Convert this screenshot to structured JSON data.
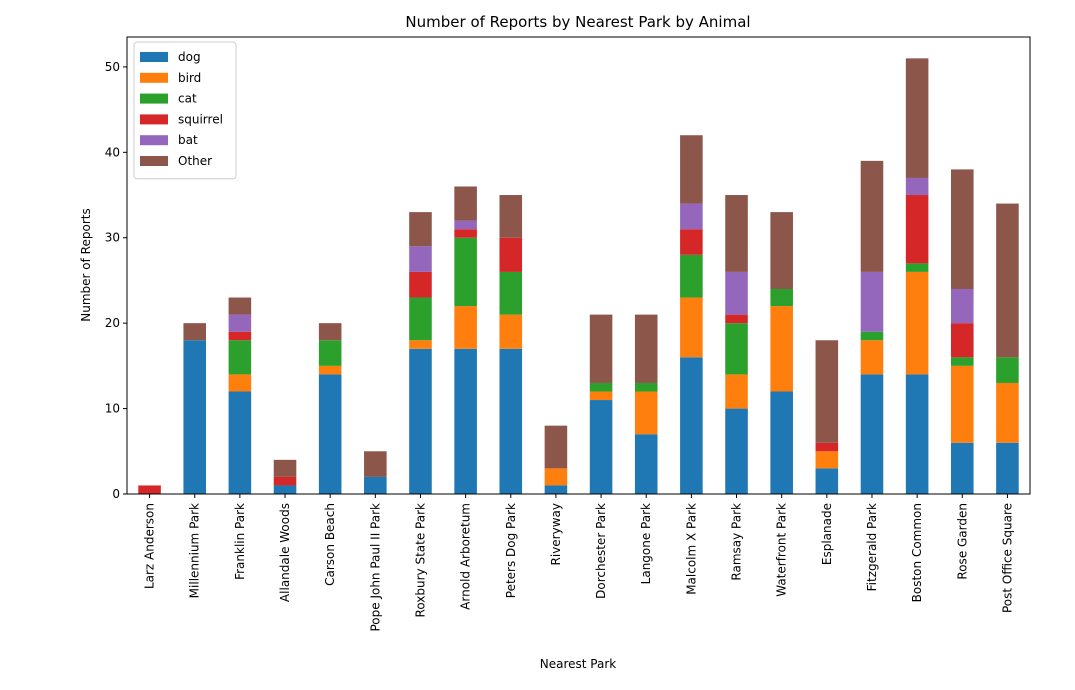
{
  "chart_data": {
    "type": "bar",
    "stacked": true,
    "title": "Number of Reports by Nearest Park by Animal",
    "xlabel": "Nearest Park",
    "ylabel": "Number of Reports",
    "ylim": [
      0,
      53.5
    ],
    "yticks": [
      0,
      10,
      20,
      30,
      40,
      50
    ],
    "grid": false,
    "legend_position": "top-left",
    "categories": [
      "Larz Anderson",
      "Millennium Park",
      "Franklin Park",
      "Allandale Woods",
      "Carson Beach",
      "Pope John Paul II Park",
      "Roxbury State Park",
      "Arnold Arboretum",
      "Peters Dog Park",
      "Riveryway",
      "Dorchester Park",
      "Langone Park",
      "Malcolm X Park",
      "Ramsay Park",
      "Waterfront Park",
      "Esplanade",
      "Fitzgerald Park",
      "Boston Common",
      "Rose Garden",
      "Post Office Square"
    ],
    "series": [
      {
        "name": "dog",
        "color": "#1f77b4",
        "values": [
          0,
          18,
          12,
          1,
          14,
          2,
          17,
          17,
          17,
          1,
          11,
          7,
          16,
          10,
          12,
          3,
          14,
          14,
          6,
          6
        ]
      },
      {
        "name": "bird",
        "color": "#ff7f0e",
        "values": [
          0,
          0,
          2,
          0,
          1,
          0,
          1,
          5,
          4,
          2,
          1,
          5,
          7,
          4,
          10,
          2,
          4,
          12,
          9,
          7
        ]
      },
      {
        "name": "cat",
        "color": "#2ca02c",
        "values": [
          0,
          0,
          4,
          0,
          3,
          0,
          5,
          8,
          5,
          0,
          1,
          1,
          5,
          6,
          2,
          0,
          1,
          1,
          1,
          3
        ]
      },
      {
        "name": "squirrel",
        "color": "#d62728",
        "values": [
          1,
          0,
          1,
          1,
          0,
          0,
          3,
          1,
          4,
          0,
          0,
          0,
          3,
          1,
          0,
          1,
          0,
          8,
          4,
          0
        ]
      },
      {
        "name": "bat",
        "color": "#9467bd",
        "values": [
          0,
          0,
          2,
          0,
          0,
          0,
          3,
          1,
          0,
          0,
          0,
          0,
          3,
          5,
          0,
          0,
          7,
          2,
          4,
          0
        ]
      },
      {
        "name": "Other",
        "color": "#8c564b",
        "values": [
          0,
          2,
          2,
          2,
          2,
          3,
          4,
          4,
          5,
          5,
          8,
          8,
          8,
          9,
          9,
          12,
          13,
          14,
          14,
          18
        ]
      }
    ]
  }
}
